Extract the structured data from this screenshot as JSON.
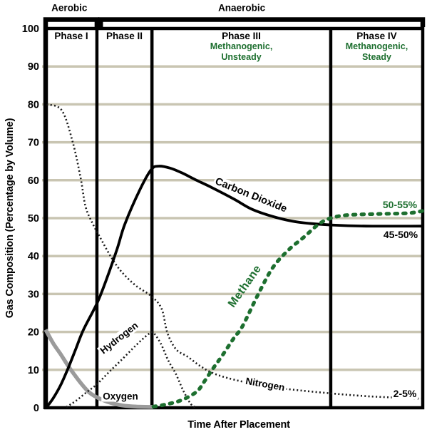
{
  "chart_data": {
    "type": "line",
    "title": "",
    "xlabel": "Time After Placement",
    "ylabel": "Gas Composition (Percentage by Volume)",
    "xlim": [
      0,
      100
    ],
    "ylim": [
      0,
      100
    ],
    "y_ticks": [
      0,
      10,
      20,
      30,
      40,
      50,
      60,
      70,
      80,
      90,
      100
    ],
    "x_ticks": [],
    "grid": "horizontal",
    "grid_color": "#c9c5b2",
    "accent_green": "#1d6f2f",
    "brackets": [
      {
        "label": "Aerobic",
        "x_start": 0,
        "x_end": 13.6,
        "label_t": 6.3
      },
      {
        "label": "Anaerobic",
        "x_start": 14.6,
        "x_end": 100,
        "label_t": 52
      }
    ],
    "phases": [
      {
        "label": "Phase I",
        "sublines": [],
        "x_start": 0,
        "x_end": 13.6
      },
      {
        "label": "Phase II",
        "sublines": [],
        "x_start": 13.6,
        "x_end": 28.2
      },
      {
        "label": "Phase III",
        "sublines": [
          "Methanogenic,",
          "Unsteady"
        ],
        "x_start": 28.2,
        "x_end": 75.6
      },
      {
        "label": "Phase IV",
        "sublines": [
          "Methanogenic,",
          "Steady"
        ],
        "x_start": 75.6,
        "x_end": 100
      }
    ],
    "series": [
      {
        "name": "Oxygen",
        "color": "#9b9b9b",
        "dash": "solid",
        "width": 5.5,
        "points": [
          [
            0,
            20.6
          ],
          [
            2,
            17
          ],
          [
            4,
            14.1
          ],
          [
            6,
            11
          ],
          [
            7.8,
            8.5
          ],
          [
            9.5,
            6.3
          ],
          [
            11.5,
            4.1
          ],
          [
            13.5,
            2.8
          ],
          [
            16,
            1.7
          ],
          [
            18,
            1.1
          ],
          [
            20.4,
            0.6
          ],
          [
            24,
            0.3
          ],
          [
            28.5,
            0.2
          ]
        ]
      },
      {
        "name": "Nitrogen",
        "color": "#1a1a1a",
        "dash": "dotted",
        "width": 2.6,
        "points": [
          [
            0.3,
            80
          ],
          [
            4.3,
            78.4
          ],
          [
            7.2,
            70
          ],
          [
            9.3,
            60.5
          ],
          [
            10.6,
            53
          ],
          [
            12.5,
            48.5
          ],
          [
            14.4,
            45
          ],
          [
            17.2,
            40
          ],
          [
            20,
            36
          ],
          [
            23.8,
            32.3
          ],
          [
            28.2,
            29.3
          ],
          [
            30.8,
            26
          ],
          [
            32.3,
            19.7
          ],
          [
            34.6,
            15.4
          ],
          [
            37.6,
            13.5
          ],
          [
            41,
            11
          ],
          [
            44.7,
            9
          ],
          [
            50,
            7.4
          ],
          [
            58.3,
            5.7
          ],
          [
            65.3,
            4.8
          ],
          [
            75.6,
            3.8
          ],
          [
            86,
            3
          ],
          [
            99.6,
            2.4
          ]
        ]
      },
      {
        "name": "Hydrogen",
        "color": "#1a1a1a",
        "dash": "dotted",
        "width": 2.6,
        "points": [
          [
            5.5,
            0.2
          ],
          [
            8,
            1.8
          ],
          [
            11,
            4.2
          ],
          [
            13.6,
            6.2
          ],
          [
            17,
            9.6
          ],
          [
            20,
            12.5
          ],
          [
            24,
            16.5
          ],
          [
            27,
            19.2
          ],
          [
            28.5,
            19.8
          ],
          [
            30.5,
            17
          ],
          [
            32.5,
            12.5
          ],
          [
            34.5,
            9
          ],
          [
            36.5,
            4.5
          ],
          [
            38.5,
            1
          ],
          [
            39.8,
            0.1
          ]
        ]
      },
      {
        "name": "Carbon Dioxide",
        "color": "#000000",
        "dash": "solid",
        "width": 3.8,
        "points": [
          [
            0.3,
            0.2
          ],
          [
            2,
            2.5
          ],
          [
            4,
            6
          ],
          [
            6,
            10.5
          ],
          [
            8,
            15.5
          ],
          [
            10,
            20.5
          ],
          [
            13.6,
            27.5
          ],
          [
            16,
            33.5
          ],
          [
            19,
            42
          ],
          [
            21,
            48.4
          ],
          [
            25,
            57.5
          ],
          [
            28,
            62.8
          ],
          [
            30,
            63.7
          ],
          [
            33,
            63.2
          ],
          [
            36,
            62
          ],
          [
            40,
            60
          ],
          [
            44,
            58.1
          ],
          [
            50,
            55
          ],
          [
            54.6,
            52.4
          ],
          [
            60,
            50.5
          ],
          [
            65.4,
            49.2
          ],
          [
            70,
            48.6
          ],
          [
            75.6,
            48.2
          ],
          [
            85,
            47.9
          ],
          [
            100,
            47.9
          ]
        ]
      },
      {
        "name": "Methane",
        "color": "#1d6f2f",
        "dash": "dashed",
        "width": 5.2,
        "points": [
          [
            28.6,
            0.3
          ],
          [
            32,
            0.9
          ],
          [
            36,
            2
          ],
          [
            40,
            4.2
          ],
          [
            42,
            6.8
          ],
          [
            44.5,
            10.5
          ],
          [
            47,
            14
          ],
          [
            50,
            18.5
          ],
          [
            52.2,
            21.5
          ],
          [
            56.3,
            29.8
          ],
          [
            60.2,
            36.9
          ],
          [
            64.4,
            41.6
          ],
          [
            68.5,
            45
          ],
          [
            72.4,
            48.4
          ],
          [
            75.6,
            50
          ],
          [
            80,
            50.8
          ],
          [
            88,
            51.1
          ],
          [
            96,
            51.3
          ],
          [
            100,
            51.9
          ]
        ]
      }
    ],
    "curve_labels": {
      "carbon_dioxide": "Carbon Dioxide",
      "methane": "Methane",
      "hydrogen": "Hydrogen",
      "oxygen": "Oxygen",
      "nitrogen": "Nitrogen"
    },
    "value_labels": {
      "methane_steady": "50-55%",
      "carbon_dioxide_steady": "45-50%",
      "nitrogen_steady": "2-5%"
    }
  }
}
